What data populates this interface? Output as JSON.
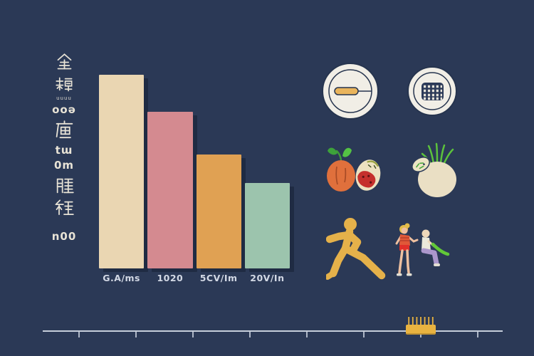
{
  "colors": {
    "background": "#2b3956",
    "bar_colors": [
      "#ead6b2",
      "#d48a90",
      "#e0a153",
      "#9cc4ad"
    ],
    "axis_label_text": "#d3d9e5",
    "left_text": "#e8e3d6",
    "axis_line": "#c6cedb",
    "plate_white": "#f1eee6",
    "plate_outline": "#26344e",
    "accent_yellow": "#e9b340",
    "runner_gold": "#e5b14a",
    "fruit_orange": "#e0703c",
    "leaf_green": "#4db33e",
    "flesh_red": "#c5302c",
    "band_green": "#62c838",
    "pants_purple": "#ab97cc",
    "shirt_red": "#e05838"
  },
  "left_labels": {
    "glyphs": [
      "全",
      "糖",
      "uuuu",
      "ooə",
      "痛",
      "tɯ",
      "0m",
      "腫",
      "種",
      "n00"
    ]
  },
  "chart_data": {
    "type": "bar",
    "categories": [
      "G.A/ms",
      "1020",
      "5CV/Im",
      "20V/In"
    ],
    "values": [
      100,
      81,
      59,
      44
    ],
    "colors": [
      "#ead6b2",
      "#d48a90",
      "#e0a153",
      "#9cc4ad"
    ],
    "title": "",
    "xlabel": "",
    "ylabel": "",
    "ylim": [
      0,
      100
    ],
    "grid": false,
    "legend": false
  },
  "icons": {
    "plate_spoon": "plate-with-breadstick-icon",
    "plate_waffle": "plate-with-waffle-icon",
    "peach": "peach-icon",
    "cut_fruit": "cut-fruit-half-icon",
    "turnip": "turnip-icon",
    "runner": "running-person-icon",
    "standing_exerciser": "standing-exerciser-icon",
    "seated_exerciser": "seated-exerciser-icon",
    "comb": "comb-icon"
  }
}
